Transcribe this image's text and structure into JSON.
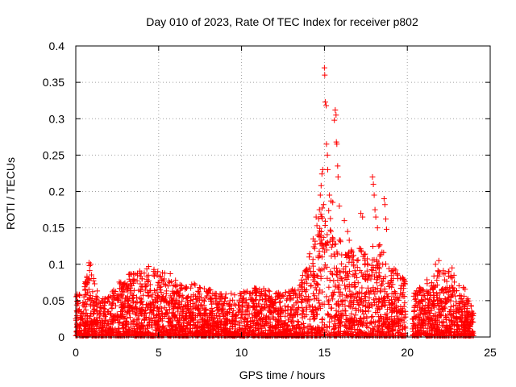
{
  "chart_data": {
    "type": "scatter",
    "title": "Day 010 of 2023, Rate Of TEC Index for receiver p802",
    "xlabel": "GPS time / hours",
    "ylabel": "ROTI / TECUs",
    "xlim": [
      0,
      25
    ],
    "ylim": [
      0,
      0.4
    ],
    "x_ticks": [
      0,
      5,
      10,
      15,
      20,
      25
    ],
    "y_ticks": [
      0,
      0.05,
      0.1,
      0.15,
      0.2,
      0.25,
      0.3,
      0.35,
      0.4
    ],
    "x_tick_labels": [
      "0",
      "5",
      "10",
      "15",
      "20",
      "25"
    ],
    "y_tick_labels": [
      "0",
      "0.05",
      "0.1",
      "0.15",
      "0.2",
      "0.25",
      "0.3",
      "0.35",
      "0.4"
    ],
    "grid": true,
    "marker": "+",
    "marker_color": "#ff0000",
    "gap_hours": [
      19.9,
      20.3
    ],
    "envelope": [
      {
        "x": 0.0,
        "ymax": 0.06
      },
      {
        "x": 0.5,
        "ymax": 0.07
      },
      {
        "x": 0.8,
        "ymax": 0.1
      },
      {
        "x": 1.5,
        "ymax": 0.05
      },
      {
        "x": 2.0,
        "ymax": 0.06
      },
      {
        "x": 3.0,
        "ymax": 0.085
      },
      {
        "x": 4.5,
        "ymax": 0.095
      },
      {
        "x": 5.5,
        "ymax": 0.088
      },
      {
        "x": 6.5,
        "ymax": 0.07
      },
      {
        "x": 7.5,
        "ymax": 0.075
      },
      {
        "x": 8.5,
        "ymax": 0.06
      },
      {
        "x": 9.5,
        "ymax": 0.06
      },
      {
        "x": 11.0,
        "ymax": 0.07
      },
      {
        "x": 12.5,
        "ymax": 0.06
      },
      {
        "x": 13.5,
        "ymax": 0.07
      },
      {
        "x": 14.5,
        "ymax": 0.15
      },
      {
        "x": 15.0,
        "ymax": 0.2
      },
      {
        "x": 15.6,
        "ymax": 0.14
      },
      {
        "x": 16.5,
        "ymax": 0.13
      },
      {
        "x": 17.5,
        "ymax": 0.12
      },
      {
        "x": 18.2,
        "ymax": 0.14
      },
      {
        "x": 19.0,
        "ymax": 0.1
      },
      {
        "x": 19.8,
        "ymax": 0.08
      },
      {
        "x": 20.4,
        "ymax": 0.06
      },
      {
        "x": 21.0,
        "ymax": 0.075
      },
      {
        "x": 22.0,
        "ymax": 0.095
      },
      {
        "x": 23.0,
        "ymax": 0.085
      },
      {
        "x": 24.0,
        "ymax": 0.045
      }
    ],
    "outliers": [
      {
        "x": 0.8,
        "y": 0.102
      },
      {
        "x": 0.9,
        "y": 0.1
      },
      {
        "x": 3.2,
        "y": 0.086
      },
      {
        "x": 3.9,
        "y": 0.083
      },
      {
        "x": 4.4,
        "y": 0.097
      },
      {
        "x": 5.7,
        "y": 0.087
      },
      {
        "x": 13.1,
        "y": 0.063
      },
      {
        "x": 14.5,
        "y": 0.165
      },
      {
        "x": 14.55,
        "y": 0.153
      },
      {
        "x": 14.6,
        "y": 0.14
      },
      {
        "x": 14.7,
        "y": 0.175
      },
      {
        "x": 14.75,
        "y": 0.195
      },
      {
        "x": 14.8,
        "y": 0.208
      },
      {
        "x": 14.85,
        "y": 0.224
      },
      {
        "x": 14.9,
        "y": 0.23
      },
      {
        "x": 14.95,
        "y": 0.182
      },
      {
        "x": 15.0,
        "y": 0.37
      },
      {
        "x": 15.02,
        "y": 0.36
      },
      {
        "x": 15.05,
        "y": 0.323
      },
      {
        "x": 15.1,
        "y": 0.318
      },
      {
        "x": 15.12,
        "y": 0.265
      },
      {
        "x": 15.18,
        "y": 0.25
      },
      {
        "x": 15.2,
        "y": 0.23
      },
      {
        "x": 15.3,
        "y": 0.195
      },
      {
        "x": 15.4,
        "y": 0.187
      },
      {
        "x": 15.5,
        "y": 0.185
      },
      {
        "x": 15.6,
        "y": 0.298
      },
      {
        "x": 15.65,
        "y": 0.312
      },
      {
        "x": 15.7,
        "y": 0.305
      },
      {
        "x": 15.72,
        "y": 0.268
      },
      {
        "x": 15.75,
        "y": 0.265
      },
      {
        "x": 15.8,
        "y": 0.235
      },
      {
        "x": 15.82,
        "y": 0.22
      },
      {
        "x": 15.9,
        "y": 0.18
      },
      {
        "x": 16.2,
        "y": 0.16
      },
      {
        "x": 16.4,
        "y": 0.145
      },
      {
        "x": 16.5,
        "y": 0.133
      },
      {
        "x": 17.2,
        "y": 0.17
      },
      {
        "x": 17.3,
        "y": 0.165
      },
      {
        "x": 17.9,
        "y": 0.22
      },
      {
        "x": 17.95,
        "y": 0.21
      },
      {
        "x": 18.0,
        "y": 0.195
      },
      {
        "x": 18.05,
        "y": 0.175
      },
      {
        "x": 18.1,
        "y": 0.165
      },
      {
        "x": 18.2,
        "y": 0.15
      },
      {
        "x": 18.6,
        "y": 0.19
      },
      {
        "x": 18.65,
        "y": 0.182
      },
      {
        "x": 18.7,
        "y": 0.162
      },
      {
        "x": 18.75,
        "y": 0.148
      },
      {
        "x": 21.7,
        "y": 0.1
      },
      {
        "x": 21.9,
        "y": 0.105
      },
      {
        "x": 22.7,
        "y": 0.095
      }
    ]
  }
}
